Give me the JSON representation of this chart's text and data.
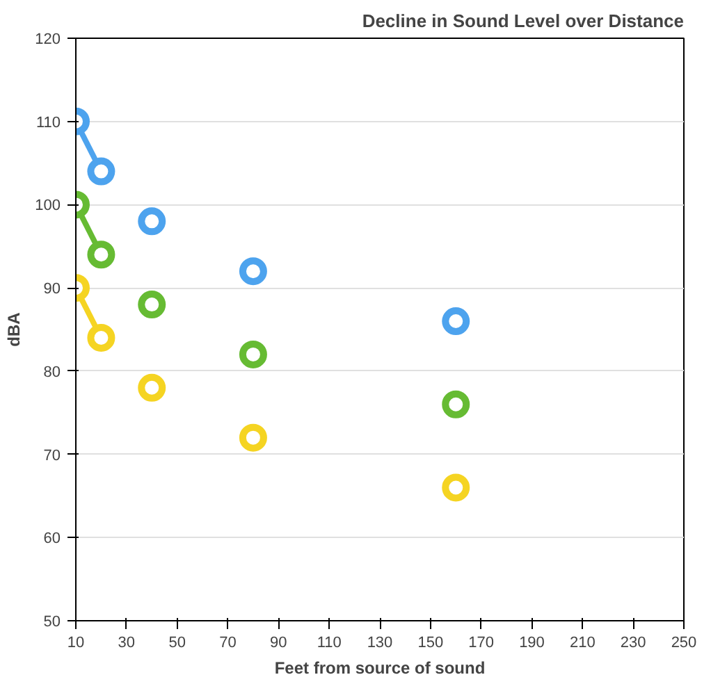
{
  "chart_data": {
    "type": "scatter",
    "title": "Decline in Sound Level over Distance",
    "xlabel": "Feet from source of sound",
    "ylabel": "dBA",
    "xlim": [
      10,
      250
    ],
    "xticks": [
      10,
      30,
      50,
      70,
      90,
      110,
      130,
      150,
      170,
      190,
      210,
      230,
      250
    ],
    "ylim": [
      50,
      120
    ],
    "yticks": [
      50,
      60,
      70,
      80,
      90,
      100,
      110,
      120
    ],
    "grid": "y",
    "marker": "circle",
    "series": [
      {
        "color": "#4da3ee",
        "x": [
          10,
          20,
          40,
          80,
          160
        ],
        "values": [
          110,
          104,
          98,
          92,
          86
        ]
      },
      {
        "color": "#66bb33",
        "x": [
          10,
          20,
          40,
          80,
          160
        ],
        "values": [
          100,
          94,
          88,
          82,
          76
        ]
      },
      {
        "color": "#f5d422",
        "x": [
          10,
          20,
          40,
          80,
          160
        ],
        "values": [
          90,
          84,
          78,
          72,
          66
        ]
      },
      {
        "type": "line",
        "color": "#4da3ee",
        "x": [
          10,
          20
        ],
        "values": [
          110,
          104
        ],
        "marker": "none"
      },
      {
        "type": "line",
        "color": "#66bb33",
        "x": [
          10,
          20
        ],
        "values": [
          100,
          94
        ],
        "marker": "none"
      },
      {
        "type": "line",
        "color": "#f5d422",
        "x": [
          10,
          20
        ],
        "values": [
          90,
          84
        ],
        "marker": "none"
      }
    ]
  }
}
